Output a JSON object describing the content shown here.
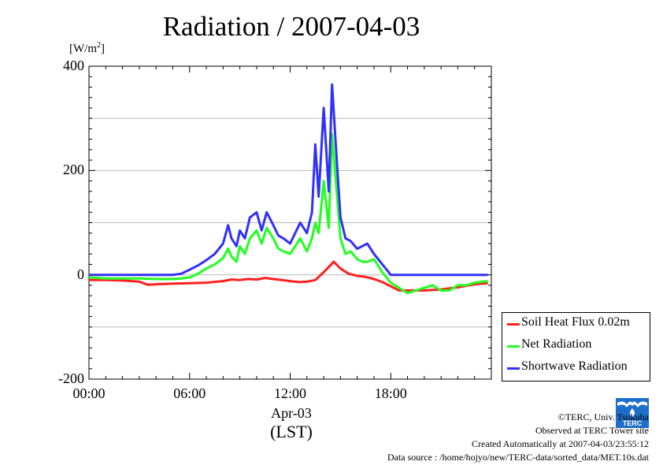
{
  "title": "Radiation / 2007-04-03",
  "chart_data": {
    "type": "line",
    "title": "Radiation / 2007-04-03",
    "ylabel": "[W/m2]",
    "ylabel_display": {
      "unit": "[W/m",
      "sup": "2",
      "close": "]"
    },
    "xlabel": "Apr-03",
    "xlabel2": "(LST)",
    "x_ticks": [
      "00:00",
      "06:00",
      "12:00",
      "18:00"
    ],
    "x_tick_hours": [
      0,
      6,
      12,
      18
    ],
    "xlim_hours": [
      0,
      24
    ],
    "y_ticks": [
      400,
      200,
      0,
      -200
    ],
    "ylim": [
      -200,
      400
    ],
    "grid": true,
    "legend_position": "right",
    "series": [
      {
        "name": "Soil Heat Flux 0.02m",
        "color": "#ff2020",
        "x_hours": [
          0,
          1,
          2,
          3,
          3.5,
          4,
          5,
          6,
          7,
          8,
          8.5,
          9,
          9.5,
          10,
          10.5,
          11,
          11.5,
          12,
          12.5,
          13,
          13.5,
          14,
          14.3,
          14.6,
          15,
          15.5,
          16,
          16.5,
          17,
          17.5,
          18,
          18.5,
          19,
          20,
          21,
          22,
          23,
          23.8
        ],
        "values": [
          -10,
          -10,
          -11,
          -13,
          -19,
          -18,
          -17,
          -16,
          -15,
          -12,
          -9,
          -10,
          -8,
          -9,
          -6,
          -8,
          -10,
          -12,
          -14,
          -13,
          -10,
          5,
          15,
          25,
          12,
          2,
          -2,
          -4,
          -8,
          -14,
          -22,
          -30,
          -30,
          -30,
          -28,
          -24,
          -18,
          -16
        ]
      },
      {
        "name": "Net Radiation",
        "color": "#20ff20",
        "x_hours": [
          0,
          1,
          2,
          3,
          4,
          5,
          5.5,
          6,
          6.5,
          7,
          7.5,
          8,
          8.3,
          8.5,
          8.8,
          9,
          9.3,
          9.6,
          10,
          10.3,
          10.6,
          11,
          11.3,
          11.6,
          12,
          12.3,
          12.6,
          13,
          13.3,
          13.5,
          13.7,
          14,
          14.3,
          14.5,
          14.8,
          15,
          15.3,
          15.6,
          16,
          16.3,
          16.6,
          17,
          17.5,
          18,
          18.5,
          19,
          19.5,
          20,
          20.5,
          21,
          21.5,
          22,
          22.5,
          23,
          23.8
        ],
        "values": [
          -5,
          -7,
          -7,
          -7,
          -8,
          -8,
          -7,
          -5,
          2,
          12,
          20,
          32,
          50,
          35,
          25,
          55,
          40,
          70,
          85,
          60,
          90,
          70,
          50,
          45,
          40,
          55,
          70,
          45,
          70,
          100,
          80,
          180,
          90,
          270,
          150,
          70,
          40,
          45,
          30,
          25,
          25,
          30,
          5,
          -15,
          -25,
          -35,
          -30,
          -25,
          -20,
          -30,
          -30,
          -20,
          -20,
          -15,
          -12
        ]
      },
      {
        "name": "Shortwave Radiation",
        "color": "#3030ff",
        "x_hours": [
          0,
          1,
          2,
          3,
          4,
          5,
          5.5,
          6,
          6.5,
          7,
          7.5,
          8,
          8.3,
          8.5,
          8.8,
          9,
          9.3,
          9.6,
          10,
          10.3,
          10.6,
          11,
          11.3,
          11.6,
          12,
          12.3,
          12.6,
          13,
          13.3,
          13.5,
          13.7,
          14,
          14.3,
          14.5,
          14.8,
          15,
          15.3,
          15.6,
          16,
          16.3,
          16.6,
          17,
          17.5,
          18,
          18.5,
          19,
          20,
          21,
          22,
          23,
          23.8
        ],
        "values": [
          0,
          0,
          0,
          0,
          0,
          0,
          2,
          10,
          18,
          28,
          40,
          60,
          95,
          70,
          55,
          85,
          70,
          110,
          120,
          85,
          120,
          95,
          75,
          70,
          60,
          80,
          100,
          80,
          120,
          250,
          150,
          320,
          160,
          365,
          210,
          110,
          70,
          65,
          50,
          55,
          60,
          40,
          20,
          0,
          0,
          0,
          0,
          0,
          0,
          0,
          0
        ]
      }
    ]
  },
  "credits": {
    "copyright": "©TERC, Univ. Tsukuba",
    "observed": "Observed at TERC Tower site",
    "created": "Created Automatically at 2007-04-03/23:55:12",
    "source": "Data source : /home/hojyo/new/TERC-data/sorted_data/MET.10s.dat"
  },
  "logo_text": "TERC"
}
